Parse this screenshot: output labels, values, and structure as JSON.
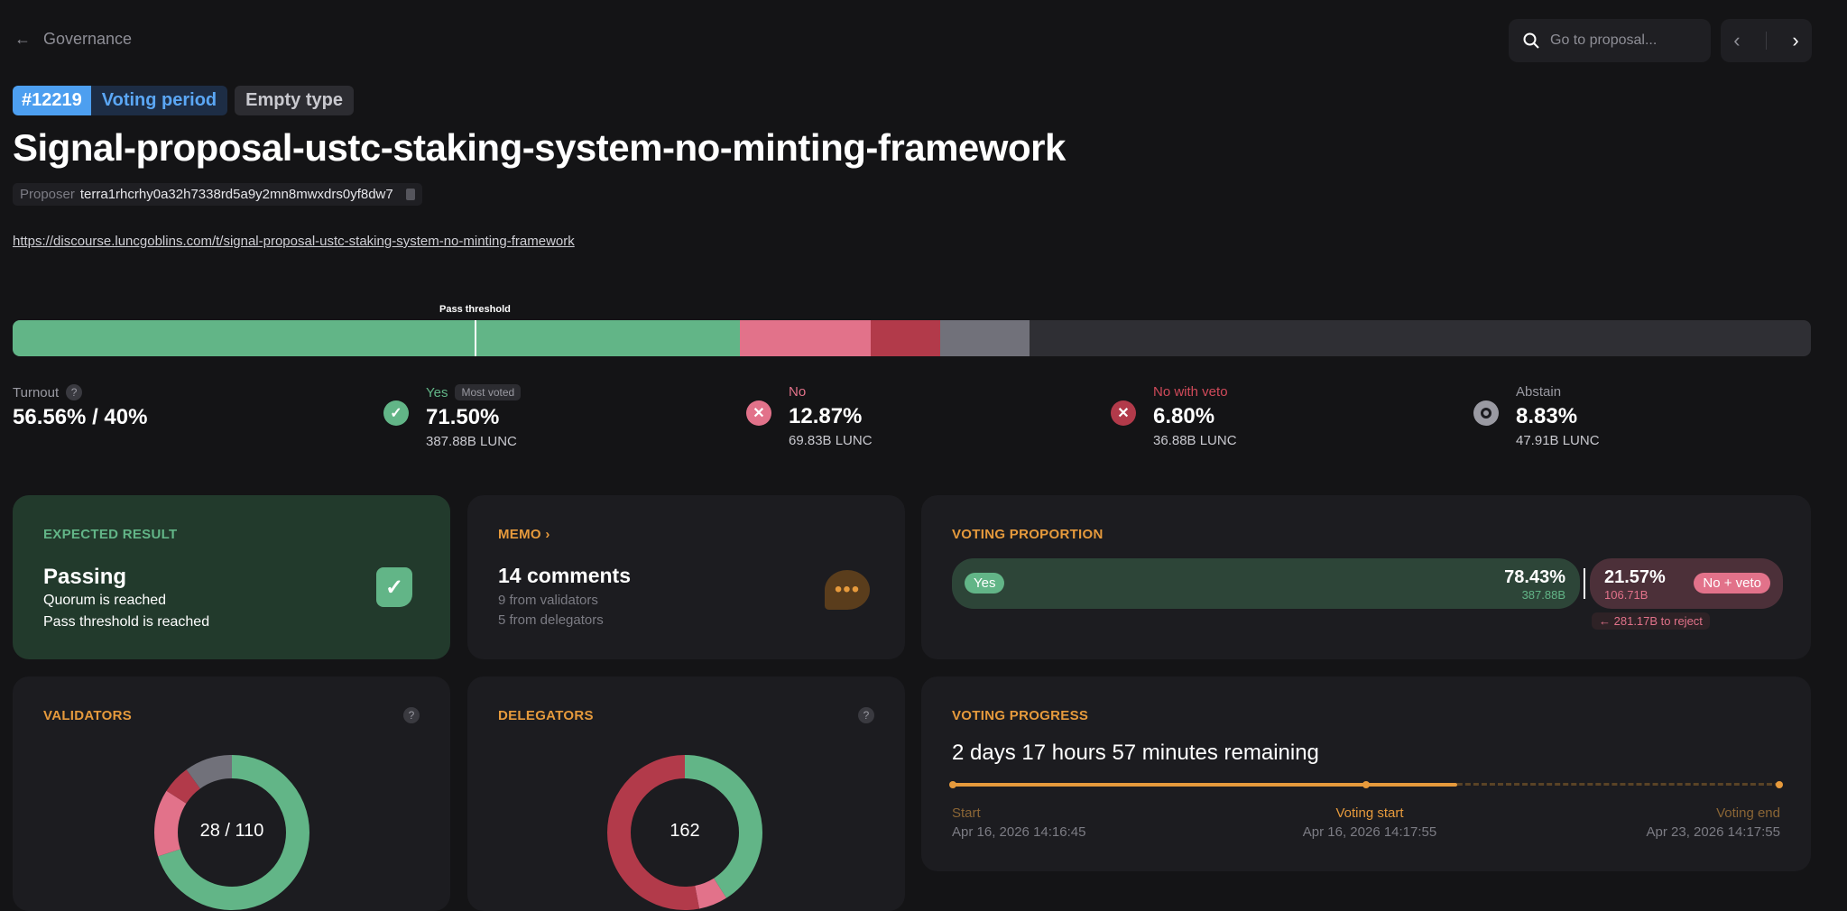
{
  "header": {
    "back_label": "Governance",
    "search_placeholder": "Go to proposal..."
  },
  "proposal": {
    "id": "#12219",
    "status": "Voting period",
    "type": "Empty type",
    "title": "Signal-proposal-ustc-staking-system-no-minting-framework",
    "proposer_label": "Proposer",
    "proposer": "terra1rhcrhy0a32h7338rd5a9y2mn8mwxdrs0yf8dw7",
    "link": "https://discourse.luncgoblins.com/t/signal-proposal-ustc-staking-system-no-minting-framework"
  },
  "tally_bar": {
    "threshold_label": "Pass threshold",
    "turnout_percent": 56.56,
    "threshold_percent": 50,
    "shares": [
      {
        "name": "yes",
        "percent": 71.5,
        "color": "#62b587"
      },
      {
        "name": "no",
        "percent": 12.87,
        "color": "#e2728a"
      },
      {
        "name": "no_with_veto",
        "percent": 6.8,
        "color": "#b23a4a"
      },
      {
        "name": "abstain",
        "percent": 8.83,
        "color": "#71717a"
      }
    ]
  },
  "stats": {
    "turnout": {
      "label": "Turnout",
      "value": "56.56% / 40%"
    },
    "yes": {
      "label": "Yes",
      "badge": "Most voted",
      "value": "71.50%",
      "amount": "387.88B LUNC",
      "color": "#62b587",
      "icon": "check-icon"
    },
    "no": {
      "label": "No",
      "value": "12.87%",
      "amount": "69.83B LUNC",
      "color": "#e2728a",
      "icon": "x-icon"
    },
    "veto": {
      "label": "No with veto",
      "value": "6.80%",
      "amount": "36.88B LUNC",
      "color": "#d04a5a",
      "icon": "x-icon"
    },
    "abstain": {
      "label": "Abstain",
      "value": "8.83%",
      "amount": "47.91B LUNC",
      "color": "#9a9aa2",
      "icon": "circle-icon"
    }
  },
  "expected": {
    "title": "EXPECTED RESULT",
    "result": "Passing",
    "line1": "Quorum is reached",
    "line2": "Pass threshold is reached"
  },
  "memo": {
    "title": "MEMO",
    "comments": "14 comments",
    "validators": "9 from validators",
    "delegators": "5 from delegators"
  },
  "proportion": {
    "title": "VOTING PROPORTION",
    "yes_label": "Yes",
    "yes_percent": "78.43%",
    "yes_amount": "387.88B",
    "no_percent": "21.57%",
    "no_amount": "106.71B",
    "no_label": "No + veto",
    "to_reject": "281.17B to reject"
  },
  "validators": {
    "title": "VALIDATORS",
    "center": "28 / 110"
  },
  "delegators": {
    "title": "DELEGATORS",
    "center": "162"
  },
  "progress": {
    "title": "VOTING PROGRESS",
    "remaining": "2 days 17 hours 57 minutes remaining",
    "start_label": "Start",
    "start": "Apr 16, 2026 14:16:45",
    "vstart_label": "Voting start",
    "vstart": "Apr 16, 2026 14:17:55",
    "vend_label": "Voting end",
    "vend": "Apr 23, 2026 14:17:55",
    "elapsed_percent": 61
  },
  "chart_data": [
    {
      "type": "pie",
      "name": "validators",
      "series": [
        {
          "name": "Yes",
          "percent": 70,
          "color": "#62b587"
        },
        {
          "name": "No",
          "percent": 14,
          "color": "#e2728a"
        },
        {
          "name": "No with veto",
          "percent": 6,
          "color": "#b23a4a"
        },
        {
          "name": "Abstain",
          "percent": 10,
          "color": "#71717a"
        }
      ]
    },
    {
      "type": "pie",
      "name": "delegators",
      "series": [
        {
          "name": "Yes",
          "percent": 41,
          "color": "#62b587"
        },
        {
          "name": "No",
          "percent": 6,
          "color": "#e2728a"
        },
        {
          "name": "No with veto",
          "percent": 53,
          "color": "#b23a4a"
        }
      ]
    }
  ]
}
